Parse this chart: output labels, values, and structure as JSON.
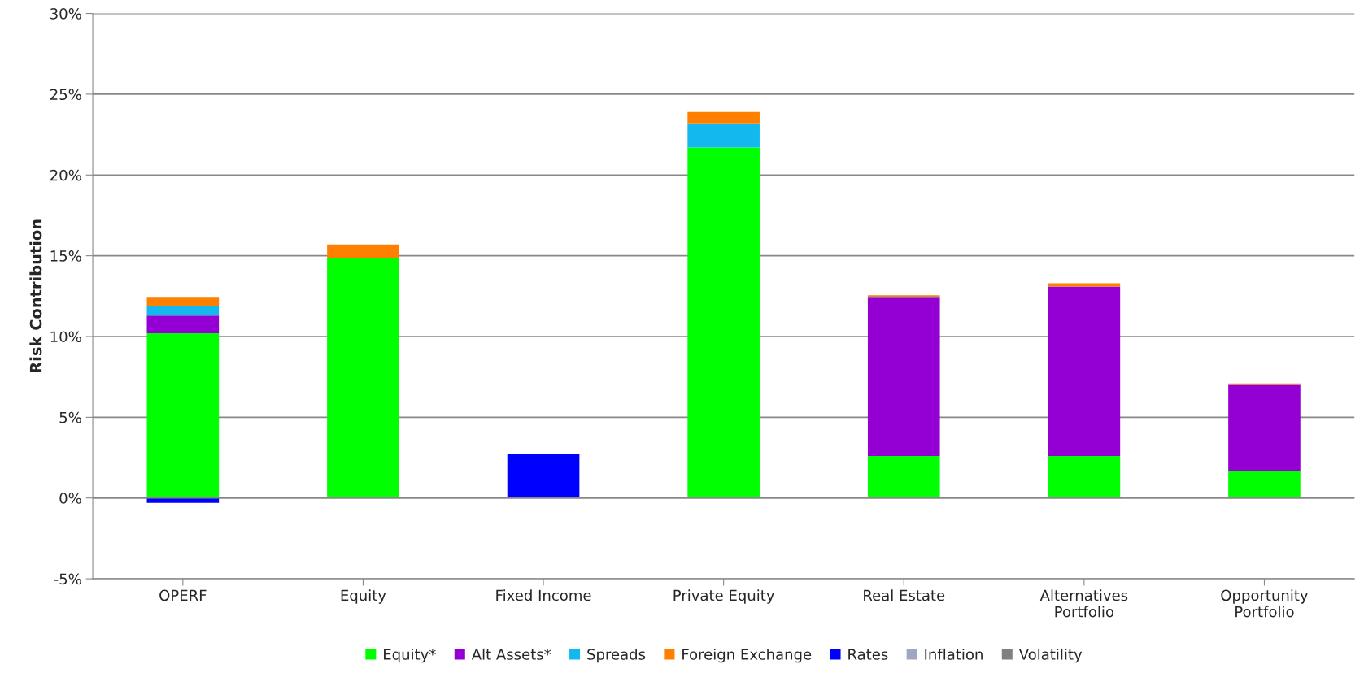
{
  "chart_data": {
    "type": "bar",
    "stacked": true,
    "ylabel": "Risk Contribution",
    "categories": [
      "OPERF",
      "Equity",
      "Fixed Income",
      "Private Equity",
      "Real Estate",
      "Alternatives\nPortfolio",
      "Opportunity\nPortfolio"
    ],
    "series": [
      {
        "name": "Equity*",
        "color": "#00ff00",
        "values": [
          10.2,
          14.85,
          0,
          21.7,
          2.6,
          2.6,
          1.7
        ]
      },
      {
        "name": "Alt Assets*",
        "color": "#9400d3",
        "values": [
          1.1,
          0,
          0,
          0,
          9.8,
          10.5,
          5.3
        ]
      },
      {
        "name": "Spreads",
        "color": "#13b9ee",
        "values": [
          0.6,
          0,
          0,
          1.5,
          0.05,
          0,
          0
        ]
      },
      {
        "name": "Foreign Exchange",
        "color": "#ff8000",
        "values": [
          0.5,
          0.85,
          0,
          0.7,
          0.1,
          0.2,
          0.1
        ]
      },
      {
        "name": "Rates",
        "color": "#0000ff",
        "values": [
          -0.3,
          0,
          2.75,
          0,
          0,
          0,
          0
        ]
      },
      {
        "name": "Inflation",
        "color": "#a0a8c0",
        "values": [
          0,
          0,
          0,
          0,
          0,
          0,
          0
        ]
      },
      {
        "name": "Volatility",
        "color": "#808080",
        "values": [
          0,
          0,
          0,
          0,
          0,
          0,
          0
        ]
      }
    ],
    "ylim": [
      -5,
      30
    ],
    "yticks": [
      {
        "value": -5,
        "label": "-5%"
      },
      {
        "value": 0,
        "label": "0%"
      },
      {
        "value": 5,
        "label": "5%"
      },
      {
        "value": 10,
        "label": "10%"
      },
      {
        "value": 15,
        "label": "15%"
      },
      {
        "value": 20,
        "label": "20%"
      },
      {
        "value": 25,
        "label": "25%"
      },
      {
        "value": 30,
        "label": "30%"
      }
    ],
    "grid": "y",
    "legend": "bottom"
  }
}
